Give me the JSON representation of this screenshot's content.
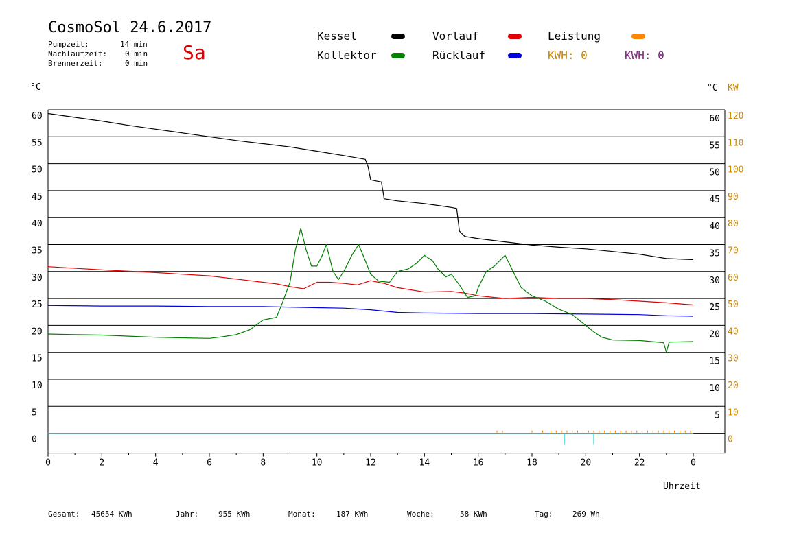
{
  "header": {
    "title": "CosmoSol 24.6.2017",
    "day": "Sa",
    "times": [
      {
        "label": "Pumpzeit:",
        "value": "14 min"
      },
      {
        "label": "Nachlaufzeit:",
        "value": "0 min"
      },
      {
        "label": "Brennerzeit:",
        "value": "0 min"
      }
    ]
  },
  "legend": {
    "kessel": "Kessel",
    "kollektor": "Kollektor",
    "vorlauf": "Vorlauf",
    "ruecklauf": "Rücklauf",
    "leistung": "Leistung",
    "kwh_orange": "KWH: 0",
    "kwh_purple": "KWH: 0"
  },
  "colors": {
    "kessel": "#000000",
    "kollektor": "#008000",
    "vorlauf": "#e00000",
    "ruecklauf": "#0000dd",
    "leistung": "#ff8800",
    "kwh_purple": "#882288",
    "baseline": "#00cccc",
    "axis_orange": "#cc8800"
  },
  "axes": {
    "left_unit": "°C",
    "right_unit_c": "°C",
    "right_unit_kw": "KW",
    "x_label": "Uhrzeit"
  },
  "footer": {
    "gesamt": {
      "label": "Gesamt:",
      "value": "45654 KWh"
    },
    "jahr": {
      "label": "Jahr:",
      "value": "955 KWh"
    },
    "monat": {
      "label": "Monat:",
      "value": "187 KWh"
    },
    "woche": {
      "label": "Woche:",
      "value": "58 KWh"
    },
    "tag": {
      "label": "Tag:",
      "value": "269 Wh"
    }
  },
  "chart_data": {
    "type": "line",
    "x_ticks": [
      "0",
      "2",
      "4",
      "6",
      "8",
      "10",
      "12",
      "14",
      "16",
      "18",
      "20",
      "22",
      "0"
    ],
    "y_ticks": [
      "60",
      "55",
      "50",
      "45",
      "40",
      "35",
      "30",
      "25",
      "20",
      "15",
      "10",
      "5",
      "0"
    ],
    "y2_ticks_c": [
      "60",
      "55",
      "50",
      "45",
      "40",
      "35",
      "30",
      "25",
      "20",
      "15",
      "10",
      "5"
    ],
    "y2_ticks_kw": [
      "120",
      "110",
      "100",
      "90",
      "80",
      "70",
      "60",
      "50",
      "40",
      "30",
      "20",
      "10",
      "0"
    ],
    "xlim": [
      0,
      24
    ],
    "ylim": [
      0,
      60
    ],
    "series": [
      {
        "name": "Kessel",
        "color": "#000000",
        "points": [
          [
            0,
            59.3
          ],
          [
            1,
            58.6
          ],
          [
            2,
            57.9
          ],
          [
            3,
            57.1
          ],
          [
            4,
            56.4
          ],
          [
            5,
            55.7
          ],
          [
            6,
            55.0
          ],
          [
            7,
            54.3
          ],
          [
            8,
            53.7
          ],
          [
            9,
            53.1
          ],
          [
            10,
            52.3
          ],
          [
            11,
            51.5
          ],
          [
            11.8,
            50.8
          ],
          [
            11.9,
            49.5
          ],
          [
            12.0,
            47.0
          ],
          [
            12.2,
            46.8
          ],
          [
            12.4,
            46.6
          ],
          [
            12.5,
            43.5
          ],
          [
            13,
            43.1
          ],
          [
            14,
            42.6
          ],
          [
            15,
            41.9
          ],
          [
            15.2,
            41.7
          ],
          [
            15.3,
            37.5
          ],
          [
            15.5,
            36.5
          ],
          [
            16,
            36.1
          ],
          [
            17,
            35.5
          ],
          [
            18,
            34.9
          ],
          [
            19,
            34.5
          ],
          [
            20,
            34.2
          ],
          [
            21,
            33.7
          ],
          [
            22,
            33.2
          ],
          [
            22.5,
            32.8
          ],
          [
            23,
            32.4
          ],
          [
            24,
            32.2
          ]
        ]
      },
      {
        "name": "Vorlauf",
        "color": "#e00000",
        "points": [
          [
            0,
            30.9
          ],
          [
            2,
            30.3
          ],
          [
            4,
            29.8
          ],
          [
            6,
            29.2
          ],
          [
            7,
            28.6
          ],
          [
            8,
            28.0
          ],
          [
            8.5,
            27.7
          ],
          [
            9,
            27.2
          ],
          [
            9.5,
            26.8
          ],
          [
            10,
            28.0
          ],
          [
            10.5,
            28.0
          ],
          [
            11,
            27.8
          ],
          [
            11.5,
            27.5
          ],
          [
            12,
            28.3
          ],
          [
            12.5,
            27.8
          ],
          [
            13,
            27.0
          ],
          [
            14,
            26.2
          ],
          [
            15,
            26.3
          ],
          [
            15.5,
            26.0
          ],
          [
            16,
            25.5
          ],
          [
            17,
            25.0
          ],
          [
            18,
            25.2
          ],
          [
            19,
            25.0
          ],
          [
            20,
            25.0
          ],
          [
            21,
            24.8
          ],
          [
            22,
            24.5
          ],
          [
            23,
            24.2
          ],
          [
            24,
            23.8
          ]
        ]
      },
      {
        "name": "Rücklauf",
        "color": "#0000dd",
        "points": [
          [
            0,
            23.7
          ],
          [
            2,
            23.6
          ],
          [
            4,
            23.6
          ],
          [
            6,
            23.5
          ],
          [
            8,
            23.5
          ],
          [
            10,
            23.3
          ],
          [
            11,
            23.2
          ],
          [
            12,
            22.9
          ],
          [
            13,
            22.4
          ],
          [
            14,
            22.3
          ],
          [
            16,
            22.2
          ],
          [
            18,
            22.2
          ],
          [
            20,
            22.1
          ],
          [
            22,
            22.0
          ],
          [
            23,
            21.8
          ],
          [
            24,
            21.7
          ]
        ]
      },
      {
        "name": "Kollektor",
        "color": "#008000",
        "points": [
          [
            0,
            18.4
          ],
          [
            1,
            18.3
          ],
          [
            2,
            18.2
          ],
          [
            3,
            18.0
          ],
          [
            4,
            17.8
          ],
          [
            5,
            17.7
          ],
          [
            6,
            17.6
          ],
          [
            6.5,
            17.9
          ],
          [
            7,
            18.3
          ],
          [
            7.5,
            19.2
          ],
          [
            8,
            21.0
          ],
          [
            8.5,
            21.5
          ],
          [
            8.7,
            24.0
          ],
          [
            9,
            28.0
          ],
          [
            9.2,
            34.0
          ],
          [
            9.4,
            38.0
          ],
          [
            9.6,
            34.0
          ],
          [
            9.8,
            31.0
          ],
          [
            10,
            31.0
          ],
          [
            10.2,
            33.0
          ],
          [
            10.35,
            35.0
          ],
          [
            10.6,
            30.0
          ],
          [
            10.8,
            28.5
          ],
          [
            11,
            30.0
          ],
          [
            11.3,
            33.0
          ],
          [
            11.55,
            35.0
          ],
          [
            11.8,
            32.0
          ],
          [
            12,
            29.5
          ],
          [
            12.3,
            28.2
          ],
          [
            12.7,
            28.0
          ],
          [
            13,
            30.0
          ],
          [
            13.4,
            30.5
          ],
          [
            13.7,
            31.5
          ],
          [
            14,
            33.0
          ],
          [
            14.3,
            32.0
          ],
          [
            14.5,
            30.5
          ],
          [
            14.8,
            29.0
          ],
          [
            15.0,
            29.5
          ],
          [
            15.3,
            27.5
          ],
          [
            15.6,
            25.2
          ],
          [
            15.9,
            25.5
          ],
          [
            16,
            27.0
          ],
          [
            16.3,
            30.0
          ],
          [
            16.6,
            31.0
          ],
          [
            16.8,
            32.0
          ],
          [
            17,
            33.0
          ],
          [
            17.3,
            30.0
          ],
          [
            17.6,
            27.0
          ],
          [
            18,
            25.5
          ],
          [
            18.5,
            24.5
          ],
          [
            19,
            23.0
          ],
          [
            19.5,
            22.0
          ],
          [
            20,
            20.0
          ],
          [
            20.3,
            18.8
          ],
          [
            20.6,
            17.8
          ],
          [
            21,
            17.3
          ],
          [
            22,
            17.2
          ],
          [
            22.9,
            16.8
          ],
          [
            23,
            15.0
          ],
          [
            23.1,
            16.9
          ],
          [
            24,
            17.0
          ]
        ]
      }
    ],
    "baseline_value": 0,
    "baseline_color": "#00cccc",
    "leistung_bars_hours": [
      16.7,
      16.9,
      18.0,
      18.4,
      18.7,
      18.9,
      19.1,
      19.3,
      19.5,
      19.7,
      19.9,
      20.1,
      20.3,
      20.5,
      20.7,
      20.9,
      21.1,
      21.3,
      21.5,
      21.7,
      21.9,
      22.1,
      22.3,
      22.5,
      22.7,
      22.9,
      23.1,
      23.3,
      23.5,
      23.7,
      23.9
    ],
    "ruecklauf_spikes_hours": [
      19.2,
      20.3
    ]
  }
}
